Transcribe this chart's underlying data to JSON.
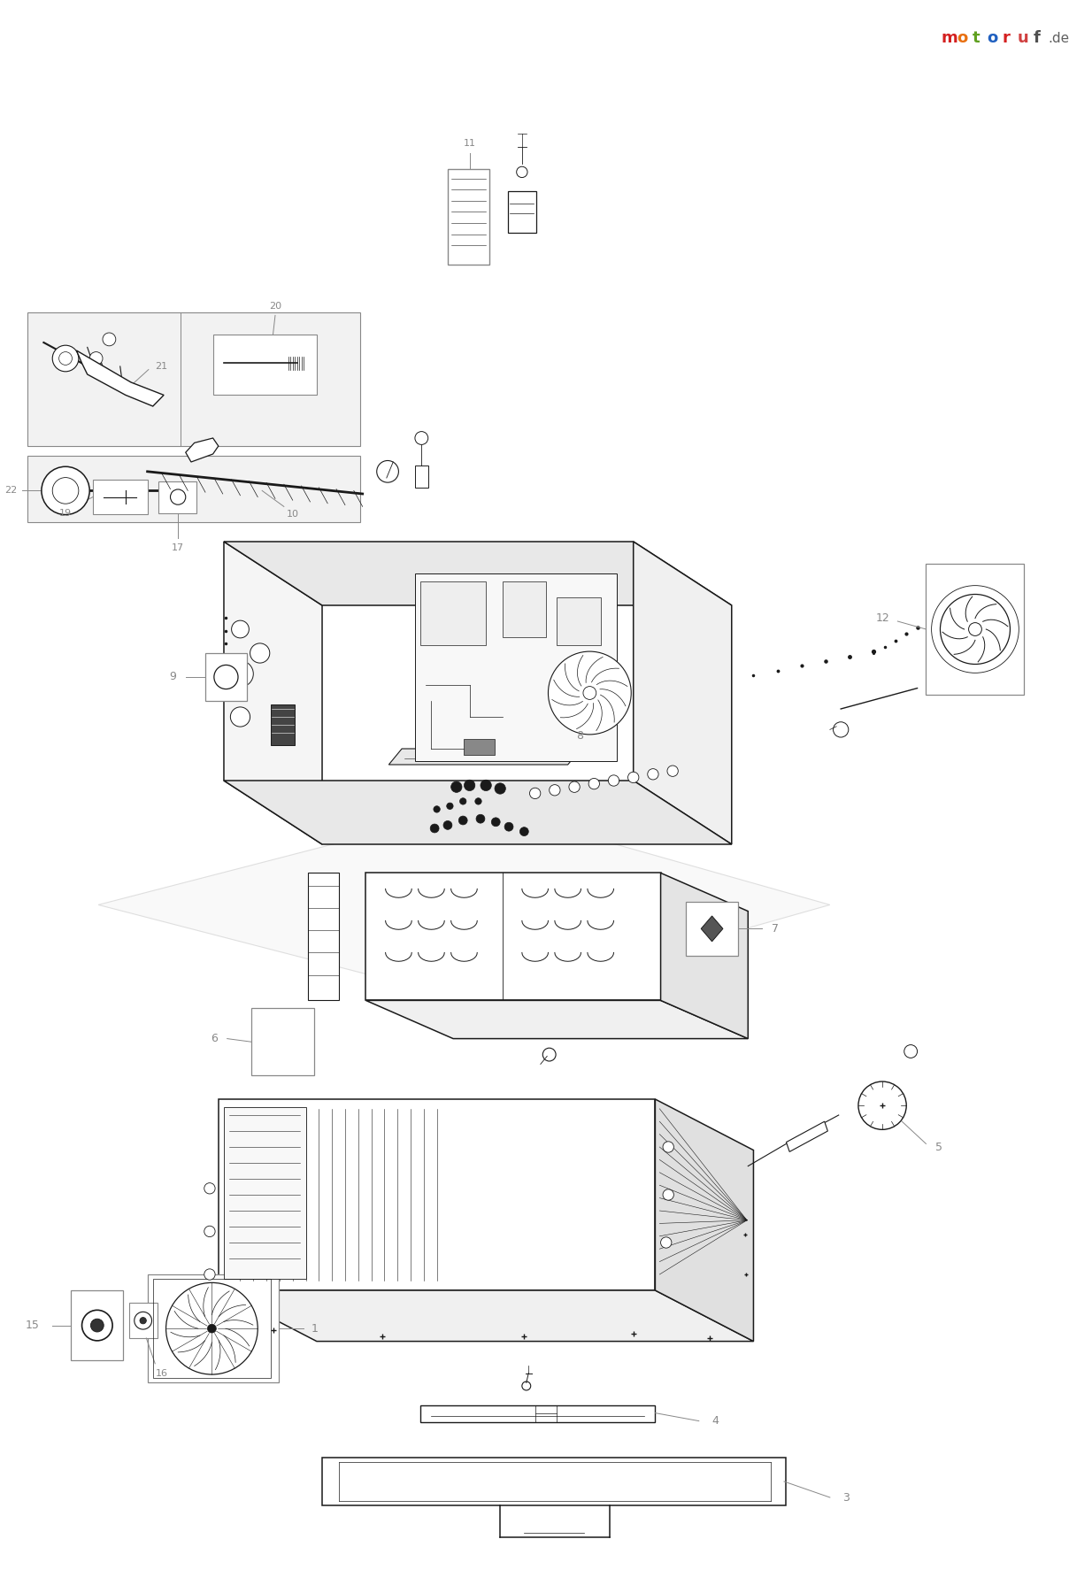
{
  "background_color": "#ffffff",
  "line_color": "#1a1a1a",
  "label_color": "#888888",
  "motoruf_chars": [
    [
      "m",
      "#d42020"
    ],
    [
      "o",
      "#e87010"
    ],
    [
      "t",
      "#60a020"
    ],
    [
      "o",
      "#2060c0"
    ],
    [
      "r",
      "#d42020"
    ],
    [
      "u",
      "#d04040"
    ],
    [
      "f",
      "#505050"
    ]
  ],
  "motoruf_de": ".de",
  "motoruf_de_color": "#606060"
}
